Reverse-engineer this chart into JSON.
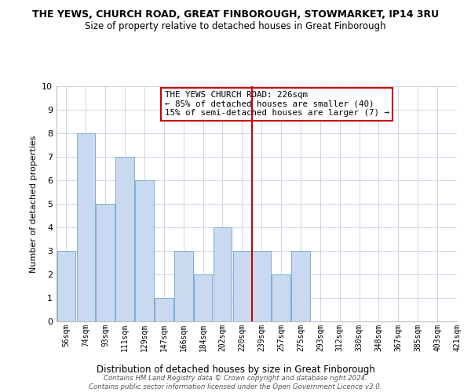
{
  "title": "THE YEWS, CHURCH ROAD, GREAT FINBOROUGH, STOWMARKET, IP14 3RU",
  "subtitle": "Size of property relative to detached houses in Great Finborough",
  "xlabel": "Distribution of detached houses by size in Great Finborough",
  "ylabel": "Number of detached properties",
  "bar_color": "#c8d9f0",
  "bar_edge_color": "#7badd4",
  "bins": [
    "56sqm",
    "74sqm",
    "93sqm",
    "111sqm",
    "129sqm",
    "147sqm",
    "166sqm",
    "184sqm",
    "202sqm",
    "220sqm",
    "239sqm",
    "257sqm",
    "275sqm",
    "293sqm",
    "312sqm",
    "330sqm",
    "348sqm",
    "367sqm",
    "385sqm",
    "403sqm",
    "421sqm"
  ],
  "values": [
    3,
    8,
    5,
    7,
    6,
    1,
    3,
    2,
    4,
    3,
    3,
    2,
    3,
    0,
    0,
    0,
    0,
    0,
    0,
    0
  ],
  "ylim": [
    0,
    10
  ],
  "yticks": [
    0,
    1,
    2,
    3,
    4,
    5,
    6,
    7,
    8,
    9,
    10
  ],
  "vline_idx": 9,
  "vline_color": "#cc0000",
  "annotation_text": "THE YEWS CHURCH ROAD: 226sqm\n← 85% of detached houses are smaller (40)\n15% of semi-detached houses are larger (7) →",
  "footer": "Contains HM Land Registry data © Crown copyright and database right 2024.\nContains public sector information licensed under the Open Government Licence v3.0.",
  "background_color": "#ffffff",
  "grid_color": "#c5cfe0"
}
